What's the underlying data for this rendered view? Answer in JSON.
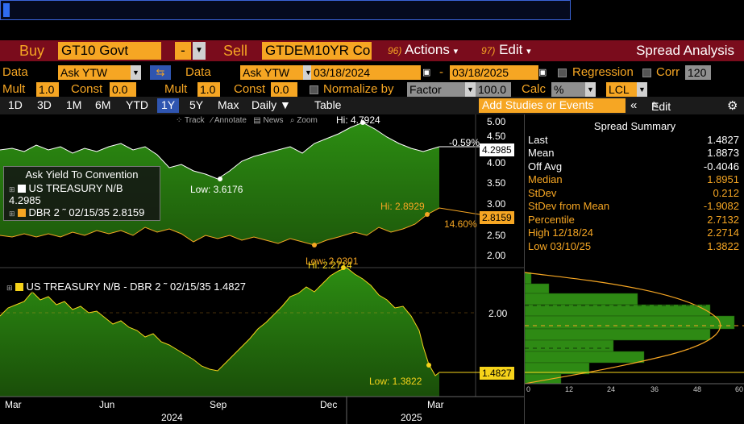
{
  "command_line": {
    "value": ""
  },
  "header": {
    "buy_label": "Buy",
    "buy_security": "GT10 Govt",
    "buy_dd": "-",
    "sell_label": "Sell",
    "sell_security": "GTDEM10YR Co",
    "actions_num": "96)",
    "actions_label": "Actions",
    "edit_num": "97)",
    "edit_label": "Edit",
    "title": "Spread Analysis"
  },
  "settings_row1": {
    "data1_label": "Data",
    "data1_value": "Ask YTW",
    "data2_label": "Data",
    "data2_value": "Ask YTW",
    "start_date": "03/18/2024",
    "dash": "-",
    "end_date": "03/18/2025",
    "regression_label": "Regression",
    "corr_label": "Corr",
    "corr_value": "120"
  },
  "settings_row2": {
    "mult1_label": "Mult",
    "mult1_value": "1.0",
    "const1_label": "Const",
    "const1_value": "0.0",
    "mult2_label": "Mult",
    "mult2_value": "1.0",
    "const2_label": "Const",
    "const2_value": "0.0",
    "normalize_label": "Normalize by",
    "normalize_value": "Factor",
    "factor_value": "100.0",
    "calc_label": "Calc",
    "calc_value": "%",
    "currency_value": "LCL"
  },
  "tabs": {
    "items": [
      "1D",
      "3D",
      "1M",
      "6M",
      "YTD",
      "1Y",
      "5Y",
      "Max"
    ],
    "selected": "1Y",
    "period": "Daily ▼",
    "table": "Table",
    "studies_placeholder": "Add Studies or Events",
    "collapse": "«",
    "edit_chart": "Edit Chart",
    "gear": "⚙"
  },
  "toolbar": {
    "track": "Track",
    "annotate": "Annotate",
    "news": "News",
    "zoom": "Zoom"
  },
  "upper_chart": {
    "legend_title": "Ask Yield To Convention",
    "series": [
      {
        "name": "US TREASURY N/B",
        "last": "4.2985",
        "color": "#ffffff"
      },
      {
        "name": "DBR 2 ˜ 02/15/35",
        "last": "2.8159",
        "color": "#f6a623"
      }
    ],
    "y_ticks": [
      "5.00",
      "4.50",
      "4.00",
      "3.50",
      "3.00",
      "2.50",
      "2.00"
    ],
    "hi_white": "Hi: 4.7924",
    "low_white": "Low: 3.6176",
    "hi_orange": "Hi: 2.8929",
    "low_orange": "Low: 2.0301",
    "chg_white": "-0.59%",
    "chg_orange": "14.60%",
    "last_white": "4.2985",
    "last_orange": "2.8159"
  },
  "lower_chart": {
    "legend": "US TREASURY N/B - DBR 2 ˜ 02/15/35 1.4827",
    "hi": "Hi: 2.2714",
    "low": "Low: 1.3822",
    "y_tick": "2.00",
    "last": "1.4827"
  },
  "x_axis": {
    "months": [
      "Mar",
      "Jun",
      "Sep",
      "Dec",
      "Mar"
    ],
    "years": [
      "2024",
      "2025"
    ]
  },
  "summary": {
    "title": "Spread Summary",
    "rows": [
      {
        "k": "Last",
        "v": "1.4827",
        "c": "white"
      },
      {
        "k": "Mean",
        "v": "1.8873",
        "c": "white"
      },
      {
        "k": "Off Avg",
        "v": "-0.4046",
        "c": "white"
      },
      {
        "k": "Median",
        "v": "1.8951",
        "c": "orange"
      },
      {
        "k": "StDev",
        "v": "0.212",
        "c": "orange"
      },
      {
        "k": "StDev from Mean",
        "v": "-1.9082",
        "c": "orange"
      },
      {
        "k": "Percentile",
        "v": "2.7132",
        "c": "orange"
      },
      {
        "k": "High 12/18/24",
        "v": "2.2714",
        "c": "orange"
      },
      {
        "k": "Low 03/10/25",
        "v": "1.3822",
        "c": "orange"
      }
    ]
  },
  "histogram": {
    "x_ticks": [
      "0",
      "12",
      "24",
      "36",
      "48",
      "60"
    ]
  },
  "colors": {
    "accent": "#f6a623",
    "header_red": "#7a0c1c",
    "area_green": "#2e8a14",
    "tab_blue": "#2f55b0"
  }
}
